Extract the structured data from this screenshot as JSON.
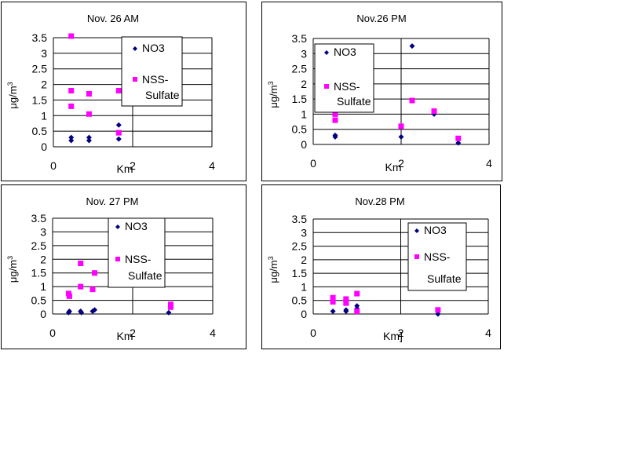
{
  "colors": {
    "no3": "#000080",
    "sulfate": "#ff00ff",
    "grid": "#000000"
  },
  "chart_data": [
    {
      "type": "scatter",
      "title": "Nov. 26 AM",
      "xlabel": "Km",
      "ylabel": "μg/m3",
      "xlim": [
        0,
        4
      ],
      "ylim": [
        0,
        3.5
      ],
      "xticks": [
        "0",
        "2",
        "4"
      ],
      "yticks": [
        "0",
        "0.5",
        "1",
        "1.5",
        "2",
        "2.5",
        "3",
        "3.5"
      ],
      "legend": [
        "NO3",
        "NSS-",
        "Sulfate"
      ],
      "series": [
        {
          "name": "NO3",
          "marker": "diamond",
          "x": [
            0.45,
            0.45,
            0.9,
            0.9,
            1.65,
            1.65
          ],
          "y": [
            0.2,
            0.3,
            0.2,
            0.3,
            0.7,
            0.25
          ]
        },
        {
          "name": "NSS-Sulfate",
          "marker": "square",
          "x": [
            0.45,
            0.45,
            0.45,
            0.9,
            0.9,
            1.65,
            1.65
          ],
          "y": [
            3.55,
            1.8,
            1.3,
            1.7,
            1.05,
            1.8,
            0.45
          ]
        }
      ]
    },
    {
      "type": "scatter",
      "title": "Nov.26 PM",
      "xlabel": "Km",
      "ylabel": "μg/m3",
      "xlim": [
        0,
        4
      ],
      "ylim": [
        0,
        3.5
      ],
      "xticks": [
        "0",
        "2",
        "4"
      ],
      "yticks": [
        "0",
        "0.5",
        "1",
        "1.5",
        "2",
        "2.5",
        "3",
        "3.5"
      ],
      "legend": [
        "NO3",
        "NSS-",
        "Sulfate"
      ],
      "series": [
        {
          "name": "NO3",
          "marker": "diamond",
          "x": [
            0.5,
            0.5,
            2.0,
            2.25,
            2.75,
            3.3
          ],
          "y": [
            0.3,
            0.25,
            0.25,
            3.25,
            1.0,
            0.05
          ]
        },
        {
          "name": "NSS-Sulfate",
          "marker": "square",
          "x": [
            0.5,
            0.5,
            2.0,
            2.25,
            2.75,
            3.3
          ],
          "y": [
            1.0,
            0.8,
            0.6,
            1.45,
            1.1,
            0.2
          ]
        }
      ]
    },
    {
      "type": "scatter",
      "title": "Nov. 27 PM",
      "xlabel": "Km",
      "ylabel": "μg/m3",
      "xlim": [
        0,
        4
      ],
      "ylim": [
        0,
        3.5
      ],
      "xticks": [
        "0",
        "2",
        "4"
      ],
      "yticks": [
        "0",
        "0.5",
        "1",
        "1.5",
        "2",
        "2.5",
        "3",
        "3.5"
      ],
      "legend": [
        "NO3",
        "NSS-",
        "Sulfate"
      ],
      "series": [
        {
          "name": "NO3",
          "marker": "diamond",
          "x": [
            0.4,
            0.42,
            0.7,
            0.72,
            1.0,
            1.05,
            2.9,
            2.95
          ],
          "y": [
            0.05,
            0.1,
            0.1,
            0.05,
            0.1,
            0.15,
            0.05,
            0.25
          ]
        },
        {
          "name": "NSS-Sulfate",
          "marker": "square",
          "x": [
            0.4,
            0.42,
            0.7,
            0.7,
            1.0,
            1.05,
            2.95,
            2.95
          ],
          "y": [
            0.75,
            0.65,
            1.85,
            1.0,
            0.9,
            1.5,
            0.35,
            0.25
          ]
        }
      ]
    },
    {
      "type": "scatter",
      "title": "Nov.28 PM",
      "xlabel": "Km]",
      "ylabel": "μg/m3",
      "xlim": [
        0,
        4
      ],
      "ylim": [
        0,
        3.5
      ],
      "xticks": [
        "0",
        "2",
        "4"
      ],
      "yticks": [
        "0",
        "0.5",
        "1",
        "1.5",
        "2",
        "2.5",
        "3",
        "3.5"
      ],
      "legend": [
        "NO3",
        "NSS-",
        "Sulfate"
      ],
      "series": [
        {
          "name": "NO3",
          "marker": "diamond",
          "x": [
            0.45,
            0.75,
            0.75,
            1.0,
            1.0,
            2.85
          ],
          "y": [
            0.1,
            0.15,
            0.1,
            0.3,
            0.2,
            0.0
          ]
        },
        {
          "name": "NSS-Sulfate",
          "marker": "square",
          "x": [
            0.45,
            0.45,
            0.75,
            0.75,
            1.0,
            1.0,
            2.85
          ],
          "y": [
            0.6,
            0.45,
            0.55,
            0.4,
            0.75,
            0.1,
            0.15
          ]
        }
      ]
    }
  ]
}
